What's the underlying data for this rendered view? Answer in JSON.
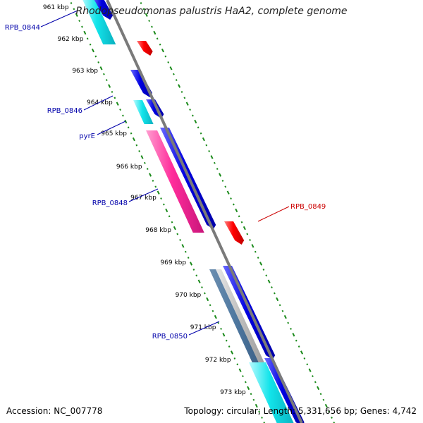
{
  "title": "Rhodopseudomonas palustris HaA2, complete genome",
  "footer": {
    "accession": "Accession: NC_007778",
    "topology": "Topology: circular; Length: 5,331,656 bp; Genes: 4,742"
  },
  "colors": {
    "backbone": "#7a7a7a",
    "tick": "#1a8a1a",
    "forward_cds": "#0000e0",
    "reverse_cds": "#ff0000",
    "pink_cds": "#ff2d9b",
    "cyan_cds": "#12e4ea",
    "label_forward": "#0000aa",
    "label_reverse": "#cc0000"
  },
  "chart_data": {
    "type": "genome-map",
    "kbp_ticks": [
      "961 kbp",
      "962 kbp",
      "963 kbp",
      "964 kbp",
      "965 kbp",
      "966 kbp",
      "967 kbp",
      "968 kbp",
      "969 kbp",
      "970 kbp",
      "971 kbp",
      "972 kbp",
      "973 kbp"
    ],
    "gene_labels": [
      {
        "name": "RPB_0844",
        "strand": "forward"
      },
      {
        "name": "RPB_0846",
        "strand": "forward"
      },
      {
        "name": "pyrE",
        "strand": "forward"
      },
      {
        "name": "RPB_0848",
        "strand": "forward"
      },
      {
        "name": "RPB_0849",
        "strand": "reverse"
      },
      {
        "name": "RPB_0850",
        "strand": "forward"
      }
    ]
  }
}
